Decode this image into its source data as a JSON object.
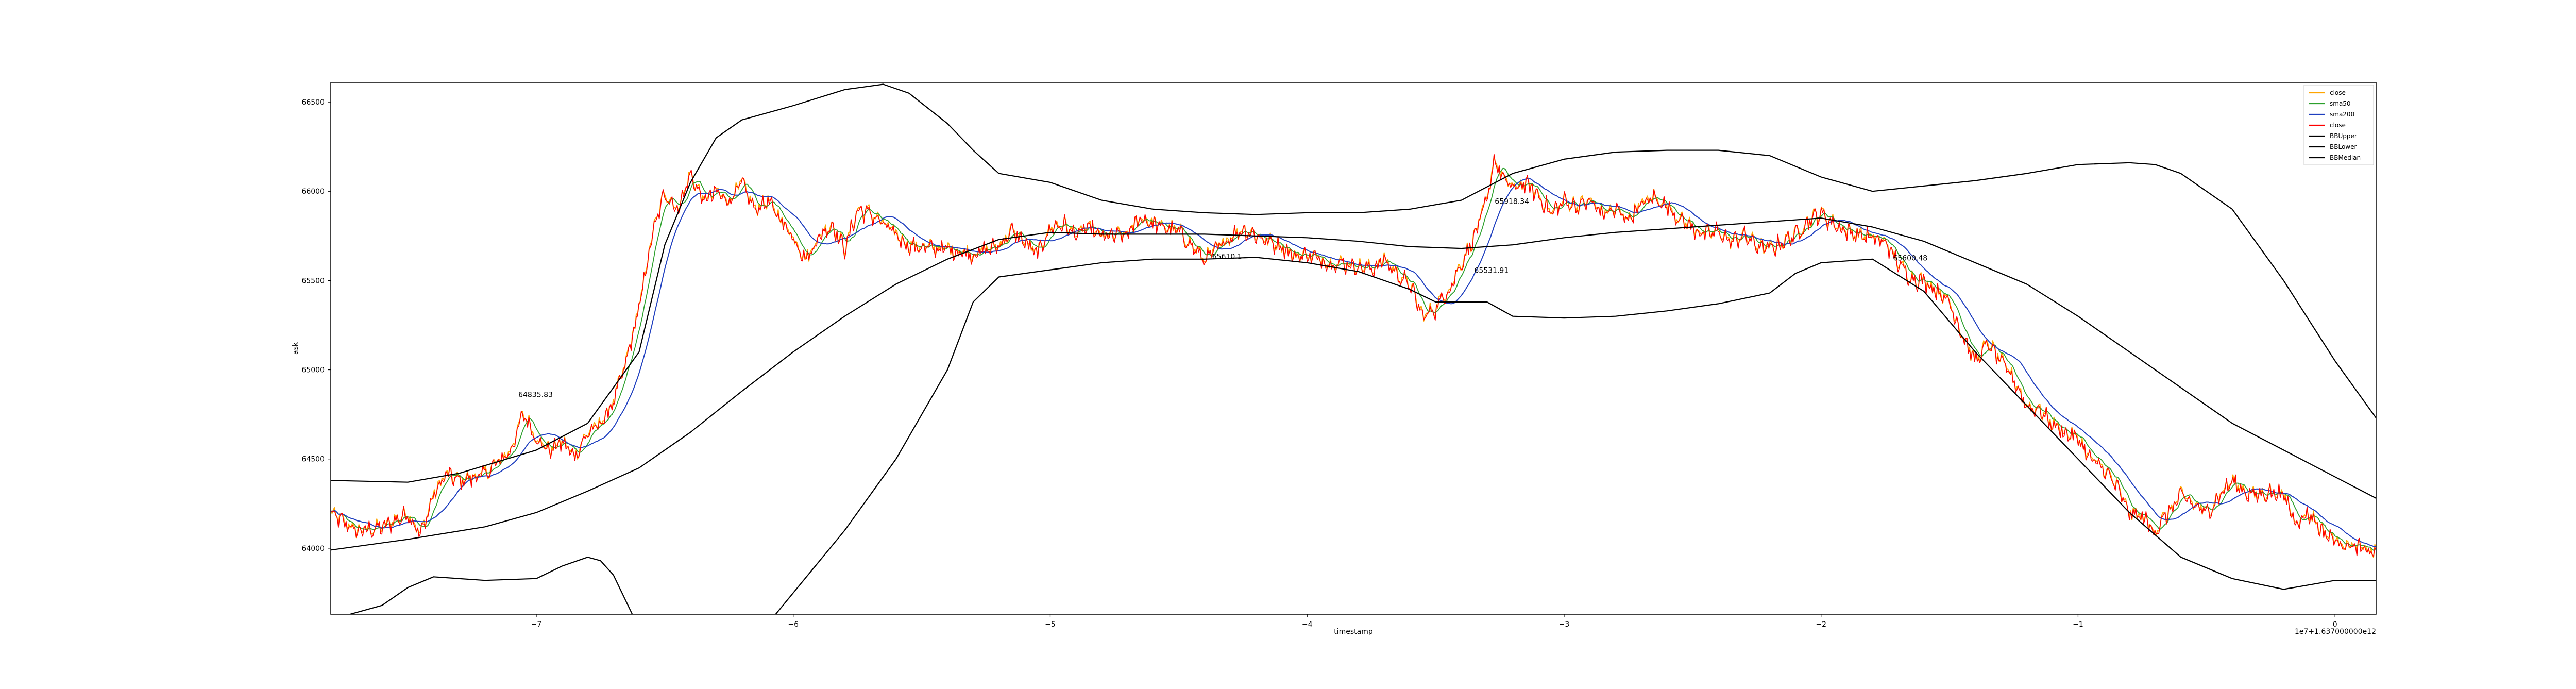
{
  "chart_data": {
    "type": "line",
    "title": "",
    "xlabel": "timestamp",
    "ylabel": "ask",
    "offset_text": "1e7+1.637000000e12",
    "xlim": [
      -7.8,
      0.16
    ],
    "ylim": [
      63630,
      66610
    ],
    "x_ticks": [
      -7,
      -6,
      -5,
      -4,
      -3,
      -2,
      -1,
      0
    ],
    "x_tick_labels": [
      "−7",
      "−6",
      "−5",
      "−4",
      "−3",
      "−2",
      "−1",
      "0"
    ],
    "y_ticks": [
      64000,
      64500,
      65000,
      65500,
      66000,
      66500
    ],
    "y_tick_labels": [
      "64000",
      "64500",
      "65000",
      "65500",
      "66000",
      "66500"
    ],
    "grid": false,
    "legend_position": "top-right",
    "legend": [
      {
        "label": "close",
        "color": "#ffa500"
      },
      {
        "label": "sma50",
        "color": "#2ca02c"
      },
      {
        "label": "sma200",
        "color": "#1f3fbf"
      },
      {
        "label": "close",
        "color": "#ff0000"
      },
      {
        "label": "BBUpper",
        "color": "#000000"
      },
      {
        "label": "BBLower",
        "color": "#000000"
      },
      {
        "label": "BBMedian",
        "color": "#000000"
      }
    ],
    "close_keypoints": [
      [
        -7.8,
        64200
      ],
      [
        -7.7,
        64100
      ],
      [
        -7.6,
        64120
      ],
      [
        -7.5,
        64200
      ],
      [
        -7.45,
        64080
      ],
      [
        -7.4,
        64300
      ],
      [
        -7.35,
        64420
      ],
      [
        -7.3,
        64380
      ],
      [
        -7.2,
        64420
      ],
      [
        -7.1,
        64550
      ],
      [
        -7.05,
        64760
      ],
      [
        -7.0,
        64620
      ],
      [
        -6.95,
        64550
      ],
      [
        -6.9,
        64600
      ],
      [
        -6.85,
        64520
      ],
      [
        -6.8,
        64650
      ],
      [
        -6.75,
        64700
      ],
      [
        -6.7,
        64820
      ],
      [
        -6.65,
        65050
      ],
      [
        -6.6,
        65350
      ],
      [
        -6.55,
        65750
      ],
      [
        -6.5,
        66000
      ],
      [
        -6.45,
        65900
      ],
      [
        -6.4,
        66100
      ],
      [
        -6.35,
        65950
      ],
      [
        -6.3,
        66000
      ],
      [
        -6.25,
        65950
      ],
      [
        -6.2,
        66050
      ],
      [
        -6.15,
        65900
      ],
      [
        -6.1,
        65950
      ],
      [
        -6.05,
        65850
      ],
      [
        -6.0,
        65750
      ],
      [
        -5.95,
        65620
      ],
      [
        -5.9,
        65750
      ],
      [
        -5.85,
        65820
      ],
      [
        -5.8,
        65680
      ],
      [
        -5.75,
        65900
      ],
      [
        -5.7,
        65880
      ],
      [
        -5.65,
        65820
      ],
      [
        -5.6,
        65760
      ],
      [
        -5.55,
        65700
      ],
      [
        -5.5,
        65690
      ],
      [
        -5.4,
        65680
      ],
      [
        -5.3,
        65650
      ],
      [
        -5.2,
        65700
      ],
      [
        -5.15,
        65780
      ],
      [
        -5.1,
        65720
      ],
      [
        -5.05,
        65650
      ],
      [
        -5.0,
        65800
      ],
      [
        -4.95,
        65820
      ],
      [
        -4.9,
        65760
      ],
      [
        -4.85,
        65800
      ],
      [
        -4.8,
        65750
      ],
      [
        -4.7,
        65760
      ],
      [
        -4.65,
        65860
      ],
      [
        -4.6,
        65820
      ],
      [
        -4.55,
        65800
      ],
      [
        -4.5,
        65780
      ],
      [
        -4.45,
        65700
      ],
      [
        -4.4,
        65620
      ],
      [
        -4.35,
        65680
      ],
      [
        -4.3,
        65750
      ],
      [
        -4.25,
        65790
      ],
      [
        -4.2,
        65760
      ],
      [
        -4.15,
        65720
      ],
      [
        -4.1,
        65700
      ],
      [
        -4.05,
        65640
      ],
      [
        -4.0,
        65650
      ],
      [
        -3.95,
        65620
      ],
      [
        -3.9,
        65600
      ],
      [
        -3.85,
        65600
      ],
      [
        -3.8,
        65580
      ],
      [
        -3.75,
        65570
      ],
      [
        -3.7,
        65620
      ],
      [
        -3.65,
        65540
      ],
      [
        -3.6,
        65480
      ],
      [
        -3.55,
        65300
      ],
      [
        -3.5,
        65350
      ],
      [
        -3.45,
        65450
      ],
      [
        -3.4,
        65600
      ],
      [
        -3.35,
        65750
      ],
      [
        -3.3,
        65950
      ],
      [
        -3.27,
        66200
      ],
      [
        -3.25,
        66100
      ],
      [
        -3.2,
        66020
      ],
      [
        -3.15,
        66050
      ],
      [
        -3.1,
        65980
      ],
      [
        -3.05,
        65880
      ],
      [
        -3.0,
        65950
      ],
      [
        -2.95,
        65920
      ],
      [
        -2.9,
        65950
      ],
      [
        -2.85,
        65880
      ],
      [
        -2.8,
        65900
      ],
      [
        -2.75,
        65850
      ],
      [
        -2.7,
        65930
      ],
      [
        -2.65,
        65970
      ],
      [
        -2.6,
        65920
      ],
      [
        -2.55,
        65850
      ],
      [
        -2.5,
        65800
      ],
      [
        -2.45,
        65760
      ],
      [
        -2.4,
        65780
      ],
      [
        -2.35,
        65720
      ],
      [
        -2.3,
        65760
      ],
      [
        -2.25,
        65700
      ],
      [
        -2.2,
        65680
      ],
      [
        -2.15,
        65720
      ],
      [
        -2.1,
        65760
      ],
      [
        -2.05,
        65840
      ],
      [
        -2.0,
        65880
      ],
      [
        -1.95,
        65820
      ],
      [
        -1.9,
        65780
      ],
      [
        -1.85,
        65760
      ],
      [
        -1.8,
        65740
      ],
      [
        -1.75,
        65720
      ],
      [
        -1.7,
        65600
      ],
      [
        -1.65,
        65520
      ],
      [
        -1.6,
        65500
      ],
      [
        -1.55,
        65450
      ],
      [
        -1.5,
        65380
      ],
      [
        -1.45,
        65200
      ],
      [
        -1.4,
        65050
      ],
      [
        -1.35,
        65150
      ],
      [
        -1.3,
        65050
      ],
      [
        -1.25,
        64950
      ],
      [
        -1.2,
        64800
      ],
      [
        -1.15,
        64780
      ],
      [
        -1.1,
        64700
      ],
      [
        -1.05,
        64650
      ],
      [
        -1.0,
        64620
      ],
      [
        -0.95,
        64500
      ],
      [
        -0.9,
        64450
      ],
      [
        -0.85,
        64350
      ],
      [
        -0.8,
        64200
      ],
      [
        -0.75,
        64180
      ],
      [
        -0.7,
        64100
      ],
      [
        -0.65,
        64200
      ],
      [
        -0.6,
        64300
      ],
      [
        -0.55,
        64250
      ],
      [
        -0.5,
        64200
      ],
      [
        -0.45,
        64300
      ],
      [
        -0.4,
        64380
      ],
      [
        -0.35,
        64320
      ],
      [
        -0.3,
        64300
      ],
      [
        -0.25,
        64320
      ],
      [
        -0.2,
        64300
      ],
      [
        -0.15,
        64150
      ],
      [
        -0.1,
        64200
      ],
      [
        -0.05,
        64100
      ],
      [
        0.0,
        64050
      ],
      [
        0.05,
        64020
      ],
      [
        0.1,
        64000
      ],
      [
        0.16,
        63980
      ]
    ],
    "bb_upper": [
      [
        -7.8,
        64380
      ],
      [
        -7.5,
        64370
      ],
      [
        -7.3,
        64420
      ],
      [
        -7.0,
        64550
      ],
      [
        -6.8,
        64700
      ],
      [
        -6.6,
        65100
      ],
      [
        -6.5,
        65700
      ],
      [
        -6.4,
        66050
      ],
      [
        -6.3,
        66300
      ],
      [
        -6.2,
        66400
      ],
      [
        -6.0,
        66480
      ],
      [
        -5.8,
        66570
      ],
      [
        -5.65,
        66600
      ],
      [
        -5.55,
        66550
      ],
      [
        -5.4,
        66380
      ],
      [
        -5.3,
        66230
      ],
      [
        -5.2,
        66100
      ],
      [
        -5.0,
        66050
      ],
      [
        -4.8,
        65950
      ],
      [
        -4.6,
        65900
      ],
      [
        -4.4,
        65880
      ],
      [
        -4.2,
        65870
      ],
      [
        -4.0,
        65880
      ],
      [
        -3.8,
        65880
      ],
      [
        -3.6,
        65900
      ],
      [
        -3.4,
        65950
      ],
      [
        -3.2,
        66100
      ],
      [
        -3.0,
        66180
      ],
      [
        -2.8,
        66220
      ],
      [
        -2.6,
        66230
      ],
      [
        -2.4,
        66230
      ],
      [
        -2.2,
        66200
      ],
      [
        -2.0,
        66080
      ],
      [
        -1.8,
        66000
      ],
      [
        -1.6,
        66030
      ],
      [
        -1.4,
        66060
      ],
      [
        -1.2,
        66100
      ],
      [
        -1.0,
        66150
      ],
      [
        -0.8,
        66160
      ],
      [
        -0.7,
        66150
      ],
      [
        -0.6,
        66100
      ],
      [
        -0.4,
        65900
      ],
      [
        -0.2,
        65500
      ],
      [
        0.0,
        65050
      ],
      [
        0.16,
        64730
      ]
    ],
    "bb_median": [
      [
        -7.8,
        63990
      ],
      [
        -7.5,
        64050
      ],
      [
        -7.2,
        64120
      ],
      [
        -7.0,
        64200
      ],
      [
        -6.8,
        64320
      ],
      [
        -6.6,
        64450
      ],
      [
        -6.4,
        64650
      ],
      [
        -6.2,
        64880
      ],
      [
        -6.0,
        65100
      ],
      [
        -5.8,
        65300
      ],
      [
        -5.6,
        65480
      ],
      [
        -5.4,
        65620
      ],
      [
        -5.2,
        65730
      ],
      [
        -5.0,
        65770
      ],
      [
        -4.8,
        65760
      ],
      [
        -4.6,
        65760
      ],
      [
        -4.4,
        65760
      ],
      [
        -4.2,
        65750
      ],
      [
        -4.0,
        65740
      ],
      [
        -3.8,
        65720
      ],
      [
        -3.6,
        65690
      ],
      [
        -3.4,
        65680
      ],
      [
        -3.2,
        65700
      ],
      [
        -3.0,
        65740
      ],
      [
        -2.8,
        65770
      ],
      [
        -2.6,
        65790
      ],
      [
        -2.4,
        65810
      ],
      [
        -2.2,
        65830
      ],
      [
        -2.0,
        65850
      ],
      [
        -1.8,
        65800
      ],
      [
        -1.6,
        65720
      ],
      [
        -1.4,
        65600
      ],
      [
        -1.2,
        65480
      ],
      [
        -1.0,
        65300
      ],
      [
        -0.8,
        65100
      ],
      [
        -0.6,
        64900
      ],
      [
        -0.4,
        64700
      ],
      [
        -0.2,
        64550
      ],
      [
        0.0,
        64400
      ],
      [
        0.16,
        64280
      ]
    ],
    "bb_lower": [
      [
        -7.8,
        63600
      ],
      [
        -7.6,
        63680
      ],
      [
        -7.5,
        63780
      ],
      [
        -7.4,
        63840
      ],
      [
        -7.2,
        63820
      ],
      [
        -7.0,
        63830
      ],
      [
        -6.9,
        63900
      ],
      [
        -6.8,
        63950
      ],
      [
        -6.75,
        63930
      ],
      [
        -6.7,
        63850
      ],
      [
        -6.65,
        63700
      ],
      [
        -6.6,
        63550
      ],
      [
        -6.2,
        63400
      ],
      [
        -6.0,
        63750
      ],
      [
        -5.8,
        64100
      ],
      [
        -5.6,
        64500
      ],
      [
        -5.4,
        65000
      ],
      [
        -5.3,
        65380
      ],
      [
        -5.2,
        65520
      ],
      [
        -5.0,
        65560
      ],
      [
        -4.8,
        65600
      ],
      [
        -4.6,
        65620
      ],
      [
        -4.4,
        65620
      ],
      [
        -4.2,
        65630
      ],
      [
        -4.0,
        65600
      ],
      [
        -3.8,
        65550
      ],
      [
        -3.6,
        65450
      ],
      [
        -3.5,
        65380
      ],
      [
        -3.3,
        65380
      ],
      [
        -3.2,
        65300
      ],
      [
        -3.0,
        65290
      ],
      [
        -2.8,
        65300
      ],
      [
        -2.6,
        65330
      ],
      [
        -2.4,
        65370
      ],
      [
        -2.2,
        65430
      ],
      [
        -2.1,
        65540
      ],
      [
        -2.0,
        65600
      ],
      [
        -1.8,
        65620
      ],
      [
        -1.6,
        65440
      ],
      [
        -1.4,
        65100
      ],
      [
        -1.2,
        64800
      ],
      [
        -1.0,
        64500
      ],
      [
        -0.8,
        64200
      ],
      [
        -0.6,
        63950
      ],
      [
        -0.4,
        63830
      ],
      [
        -0.2,
        63770
      ],
      [
        0.0,
        63820
      ],
      [
        0.16,
        63820
      ]
    ],
    "annotations": [
      {
        "x": -7.07,
        "y": 64835.83,
        "text": "64835.83"
      },
      {
        "x": -3.27,
        "y": 65918.34,
        "text": "65918.34"
      },
      {
        "x": -4.37,
        "y": 65610.1,
        "text": "65610.1"
      },
      {
        "x": -3.35,
        "y": 65531.91,
        "text": "65531.91"
      },
      {
        "x": -1.72,
        "y": 65600.48,
        "text": "65600.48"
      }
    ]
  }
}
